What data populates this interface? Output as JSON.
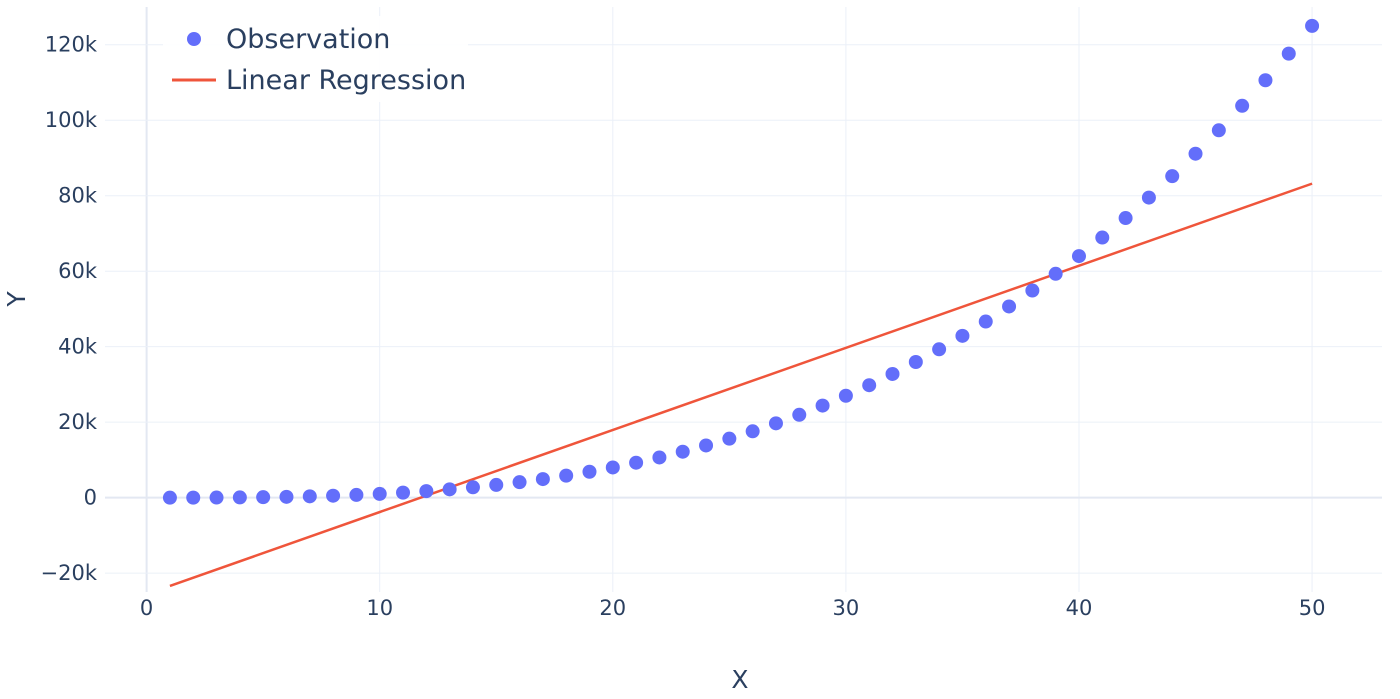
{
  "chart_data": {
    "type": "scatter",
    "title": "",
    "xlabel": "X",
    "ylabel": "Y",
    "xlim": [
      -2,
      53
    ],
    "ylim": [
      -25000,
      130000
    ],
    "x_ticks": [
      0,
      10,
      20,
      30,
      40,
      50
    ],
    "x_tick_labels": [
      "0",
      "10",
      "20",
      "30",
      "40",
      "50"
    ],
    "y_ticks": [
      -20000,
      0,
      20000,
      40000,
      60000,
      80000,
      100000,
      120000
    ],
    "y_tick_labels": [
      "−20k",
      "0",
      "20k",
      "40k",
      "60k",
      "80k",
      "100k",
      "120k"
    ],
    "grid": true,
    "legend_position": "top-left",
    "series": [
      {
        "name": "Observation",
        "mode": "markers",
        "color": "#636efa",
        "x": [
          1,
          2,
          3,
          4,
          5,
          6,
          7,
          8,
          9,
          10,
          11,
          12,
          13,
          14,
          15,
          16,
          17,
          18,
          19,
          20,
          21,
          22,
          23,
          24,
          25,
          26,
          27,
          28,
          29,
          30,
          31,
          32,
          33,
          34,
          35,
          36,
          37,
          38,
          39,
          40,
          41,
          42,
          43,
          44,
          45,
          46,
          47,
          48,
          49,
          50
        ],
        "y": [
          1,
          8,
          27,
          64,
          125,
          216,
          343,
          512,
          729,
          1000,
          1331,
          1728,
          2197,
          2744,
          3375,
          4096,
          4913,
          5832,
          6859,
          8000,
          9261,
          10648,
          12167,
          13824,
          15625,
          17576,
          19683,
          21952,
          24389,
          27000,
          29791,
          32768,
          35937,
          39304,
          42875,
          46656,
          50653,
          54872,
          59319,
          64000,
          68921,
          74088,
          79507,
          85184,
          91125,
          97336,
          103823,
          110592,
          117649,
          125000
        ]
      },
      {
        "name": "Linear Regression",
        "mode": "lines",
        "color": "#ef553b",
        "x": [
          1,
          50
        ],
        "y": [
          -23400,
          83200
        ]
      }
    ]
  }
}
